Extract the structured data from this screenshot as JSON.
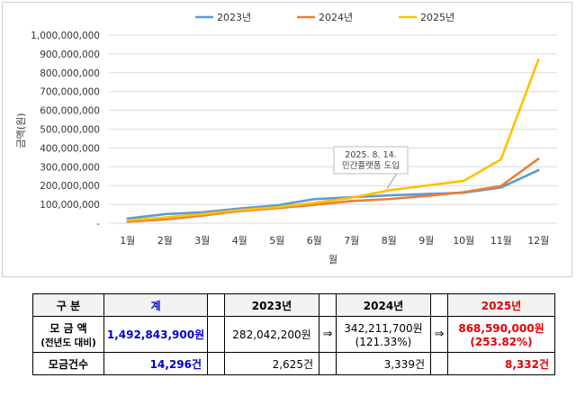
{
  "chart_data": {
    "type": "line",
    "categories": [
      "1월",
      "2월",
      "3월",
      "4월",
      "5월",
      "6월",
      "7월",
      "8월",
      "9월",
      "10월",
      "11월",
      "12월"
    ],
    "series": [
      {
        "name": "2023년",
        "color": "#5b9bd5",
        "values": [
          25000000,
          48000000,
          58000000,
          78000000,
          95000000,
          128000000,
          138000000,
          148000000,
          155000000,
          162000000,
          190000000,
          282042200
        ]
      },
      {
        "name": "2024년",
        "color": "#ed7d31",
        "values": [
          8000000,
          20000000,
          40000000,
          65000000,
          80000000,
          98000000,
          118000000,
          128000000,
          145000000,
          165000000,
          198000000,
          342211700
        ]
      },
      {
        "name": "2025년",
        "color": "#ffc000",
        "values": [
          15000000,
          30000000,
          48000000,
          70000000,
          85000000,
          108000000,
          135000000,
          175000000,
          200000000,
          225000000,
          340000000,
          868590000
        ]
      }
    ],
    "y_ticks": [
      "1,000,000,000",
      "900,000,000",
      "800,000,000",
      "700,000,000",
      "600,000,000",
      "500,000,000",
      "400,000,000",
      "300,000,000",
      "200,000,000",
      "100,000,000",
      "-"
    ],
    "y_tick_values": [
      1000000000,
      900000000,
      800000000,
      700000000,
      600000000,
      500000000,
      400000000,
      300000000,
      200000000,
      100000000,
      0
    ],
    "ylim": [
      0,
      1000000000
    ],
    "xlabel": "월",
    "ylabel": "금액(원)",
    "legend_position": "top-center",
    "grid": true,
    "annotation": {
      "lines": [
        "2025. 8. 14.",
        "민간플랫폼 도입"
      ],
      "category": "8월",
      "value": 175000000
    }
  },
  "table": {
    "header": {
      "label": "구  분",
      "total": "계",
      "y2023": "2023년",
      "y2024": "2024년",
      "y2025": "2025년"
    },
    "amount_row": {
      "label": "모 금 액",
      "sublabel": "(전년도 대비)",
      "total": "1,492,843,900원",
      "y2023": "282,042,200원",
      "y2024": "342,211,700원",
      "y2024_ratio": "(121.33%)",
      "y2025": "868,590,000원",
      "y2025_ratio": "(253.82%)",
      "arrow": "⇒"
    },
    "count_row": {
      "label": "모금건수",
      "total": "14,296건",
      "y2023": "2,625건",
      "y2024": "3,339건",
      "y2025": "8,332건"
    }
  }
}
